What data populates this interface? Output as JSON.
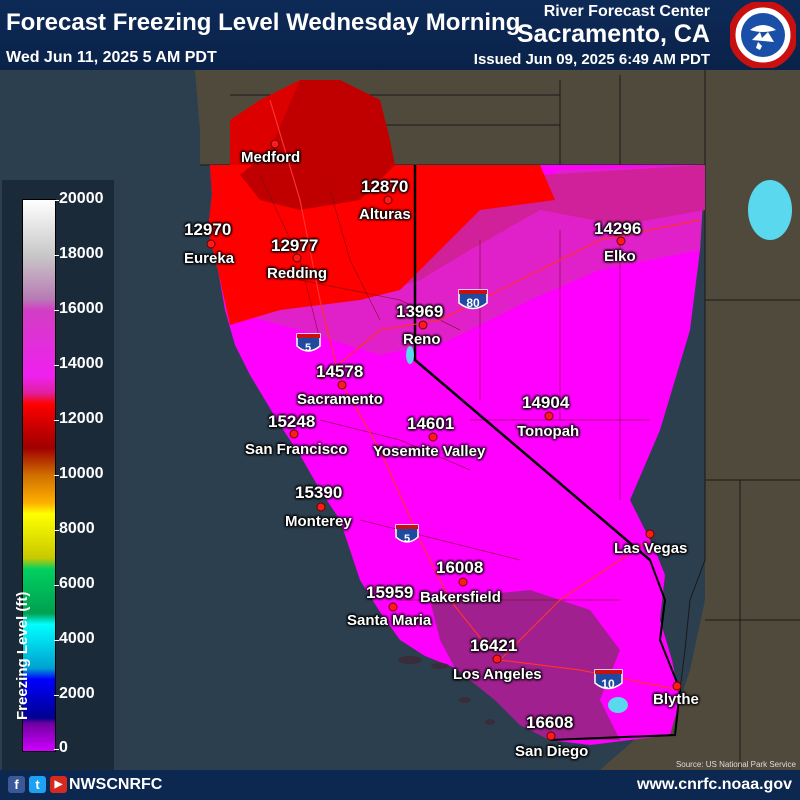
{
  "header": {
    "title": "Forecast Freezing Level Wednesday Morning",
    "valid_time": "Wed Jun 11, 2025 5 AM PDT",
    "center_name": "River Forecast Center",
    "office": "Sacramento, CA",
    "issued": "Issued Jun 09, 2025 6:49 AM PDT",
    "logo_text": "NATIONAL WEATHER SERVICE"
  },
  "legend": {
    "title": "Freezing Level (ft)",
    "ticks": [
      "20000",
      "18000",
      "16000",
      "14000",
      "12000",
      "10000",
      "8000",
      "6000",
      "4000",
      "2000",
      "0"
    ]
  },
  "colors": {
    "level_12000": "#c00000",
    "level_14000": "#ff0000",
    "level_15000": "#e020c8",
    "level_16000": "#ff00ff",
    "level_16500": "#a02090",
    "background": "#2c3f4f",
    "header": "#0d2a57"
  },
  "highways": [
    "5",
    "80",
    "5",
    "10"
  ],
  "stations": [
    {
      "name": "Medford",
      "value": ""
    },
    {
      "name": "Eureka",
      "value": "12970"
    },
    {
      "name": "Redding",
      "value": "12977"
    },
    {
      "name": "Alturas",
      "value": "12870"
    },
    {
      "name": "Elko",
      "value": "14296"
    },
    {
      "name": "Reno",
      "value": "13969"
    },
    {
      "name": "Sacramento",
      "value": "14578"
    },
    {
      "name": "San Francisco",
      "value": "15248"
    },
    {
      "name": "Yosemite Valley",
      "value": "14601"
    },
    {
      "name": "Tonopah",
      "value": "14904"
    },
    {
      "name": "Monterey",
      "value": "15390"
    },
    {
      "name": "Las Vegas",
      "value": ""
    },
    {
      "name": "Bakersfield",
      "value": "16008"
    },
    {
      "name": "Santa Maria",
      "value": "15959"
    },
    {
      "name": "Los Angeles",
      "value": "16421"
    },
    {
      "name": "Blythe",
      "value": ""
    },
    {
      "name": "San Diego",
      "value": "16608"
    }
  ],
  "map_credit": "Source: US National Park Service",
  "footer": {
    "social": [
      "f",
      "t",
      "▶"
    ],
    "handle": "NWSCNRFC",
    "website": "www.cnrfc.noaa.gov"
  }
}
